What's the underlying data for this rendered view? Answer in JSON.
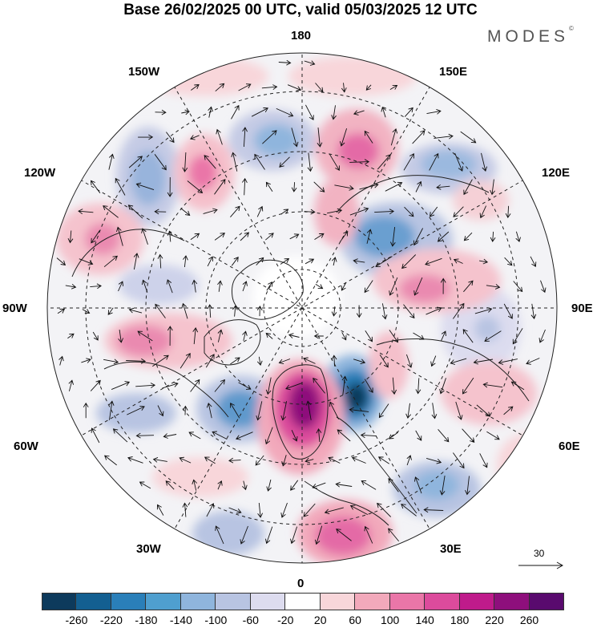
{
  "title": "Base 26/02/2025 00 UTC, valid 05/03/2025 12 UTC",
  "brand": "MODES",
  "brand_mark": "©",
  "longitude_labels": {
    "top": "180",
    "bottom": "0",
    "left": "90W",
    "right": "90E",
    "upper_left_1": "150W",
    "upper_left_2": "120W",
    "lower_left_1": "60W",
    "lower_left_2": "30W",
    "upper_right_1": "150E",
    "upper_right_2": "120E",
    "lower_right_1": "60E",
    "lower_right_2": "30E"
  },
  "vector_reference": "30",
  "colorbar": {
    "labels": [
      "-260",
      "-220",
      "-180",
      "-140",
      "-100",
      "-60",
      "-20",
      "20",
      "60",
      "100",
      "140",
      "180",
      "220",
      "260"
    ],
    "colors": [
      "#0d3a5c",
      "#135f91",
      "#2a7fb9",
      "#4f9fcf",
      "#8fb5dd",
      "#b8c4e2",
      "#dddcef",
      "#ffffff",
      "#f8d6da",
      "#f2a9bb",
      "#ea76a8",
      "#dc4b9c",
      "#bf1b8b",
      "#8e0f7c",
      "#590a6e"
    ]
  }
}
